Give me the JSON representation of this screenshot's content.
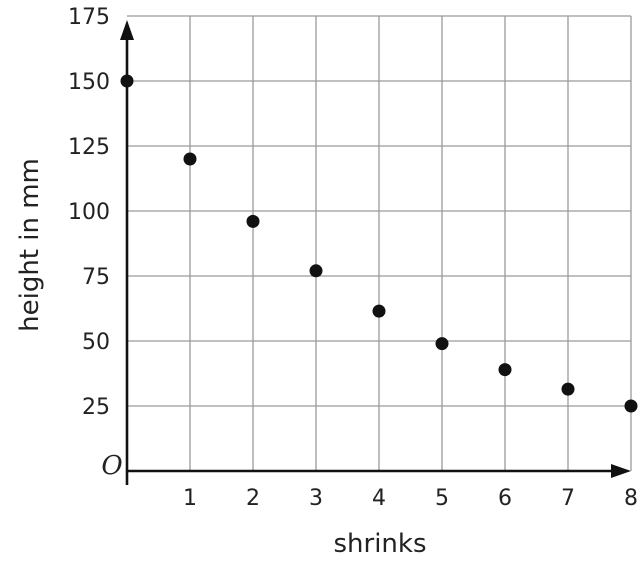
{
  "chart_data": {
    "type": "scatter",
    "title": "",
    "xlabel": "shrinks",
    "ylabel": "height in mm",
    "origin_label": "O",
    "x": [
      0,
      1,
      2,
      3,
      4,
      5,
      6,
      7,
      8
    ],
    "y": [
      150,
      120,
      96,
      77,
      61.5,
      49,
      39,
      31.5,
      25
    ],
    "xlim": [
      0,
      8
    ],
    "ylim": [
      0,
      175
    ],
    "x_ticks": [
      1,
      2,
      3,
      4,
      5,
      6,
      7,
      8
    ],
    "y_ticks": [
      25,
      50,
      75,
      100,
      125,
      150,
      175
    ],
    "grid": true,
    "colors": {
      "points": "#111111",
      "grid": "#9a9a9a",
      "axes": "#111111"
    }
  }
}
